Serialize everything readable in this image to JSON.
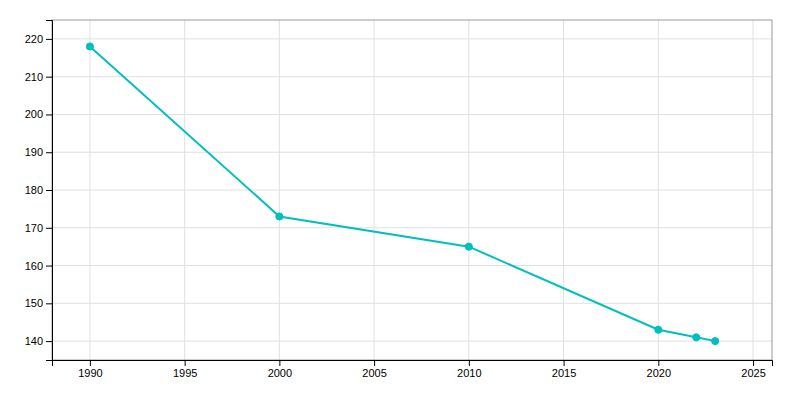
{
  "chart_data": {
    "type": "line",
    "x": [
      1990,
      2000,
      2010,
      2020,
      2022,
      2023
    ],
    "values": [
      218,
      173,
      165,
      143,
      141,
      140
    ],
    "color": "#00BFBF",
    "marker": "circle",
    "xlim": [
      1988,
      2026
    ],
    "ylim": [
      135,
      225
    ],
    "xticks": [
      1990,
      1995,
      2000,
      2005,
      2010,
      2015,
      2020,
      2025
    ],
    "yticks": [
      140,
      150,
      160,
      170,
      180,
      190,
      200,
      210,
      220
    ],
    "grid": true
  }
}
